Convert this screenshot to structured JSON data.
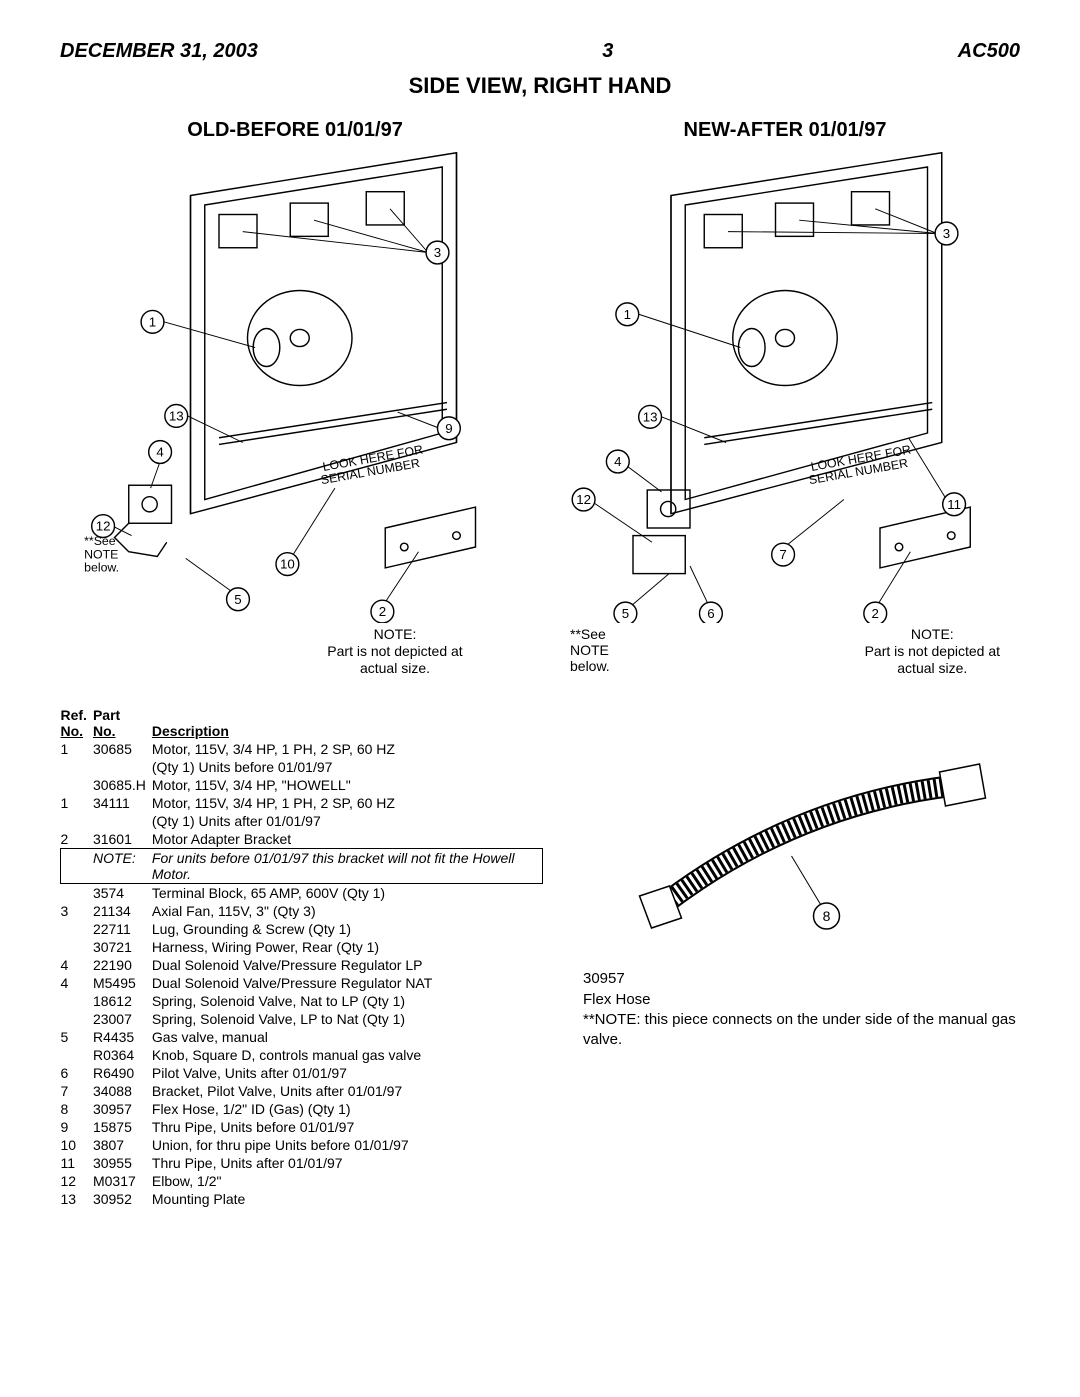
{
  "header": {
    "date": "DECEMBER 31, 2003",
    "page": "3",
    "model": "AC500"
  },
  "main_title": "SIDE VIEW, RIGHT HAND",
  "diagram_old_title": "OLD-BEFORE 01/01/97",
  "diagram_new_title": "NEW-AFTER 01/01/97",
  "look_here": "LOOK HERE FOR\nSERIAL NUMBER",
  "see_note": "**See\nNOTE\nbelow.",
  "size_note": "NOTE:\nPart is not depicted at\nactual size.",
  "hose": {
    "callout_num": "8",
    "part_no": "30957",
    "name": "Flex Hose",
    "note": "**NOTE:  this piece connects on the under side of the manual gas valve."
  },
  "table": {
    "headers": {
      "ref": "Ref.\nNo.",
      "part": "Part\nNo.",
      "desc": "Description"
    },
    "rows": [
      {
        "ref": "1",
        "part": "30685",
        "desc": "Motor, 115V, 3/4 HP, 1 PH, 2 SP, 60 HZ"
      },
      {
        "ref": "",
        "part": "",
        "desc": "(Qty 1)  Units before 01/01/97"
      },
      {
        "ref": "",
        "part": "30685.H",
        "desc": "Motor, 115V, 3/4 HP, \"HOWELL\""
      },
      {
        "ref": "1",
        "part": "34111",
        "desc": "Motor, 115V, 3/4 HP, 1 PH, 2 SP, 60 HZ"
      },
      {
        "ref": "",
        "part": "",
        "desc": "(Qty 1)  Units after 01/01/97"
      },
      {
        "ref": "2",
        "part": "31601",
        "desc": "Motor Adapter Bracket"
      },
      {
        "ref": "",
        "part": "NOTE:",
        "desc": "For units before 01/01/97 this bracket will not fit the Howell Motor.",
        "boxed": true,
        "italic": true
      },
      {
        "ref": "",
        "part": "3574",
        "desc": "Terminal Block, 65 AMP, 600V (Qty 1)"
      },
      {
        "ref": "3",
        "part": "21134",
        "desc": "Axial Fan, 115V, 3\" (Qty 3)"
      },
      {
        "ref": "",
        "part": "22711",
        "desc": "Lug, Grounding & Screw (Qty 1)"
      },
      {
        "ref": "",
        "part": "30721",
        "desc": "Harness, Wiring Power, Rear (Qty 1)"
      },
      {
        "ref": "4",
        "part": "22190",
        "desc": "Dual Solenoid Valve/Pressure Regulator LP"
      },
      {
        "ref": "4",
        "part": "M5495",
        "desc": "Dual Solenoid Valve/Pressure Regulator NAT"
      },
      {
        "ref": "",
        "part": "18612",
        "desc": "Spring, Solenoid Valve, Nat to LP (Qty 1)"
      },
      {
        "ref": "",
        "part": "23007",
        "desc": "Spring, Solenoid Valve, LP to Nat  (Qty 1)"
      },
      {
        "ref": "5",
        "part": "R4435",
        "desc": "Gas valve, manual"
      },
      {
        "ref": "",
        "part": "R0364",
        "desc": "Knob, Square D, controls manual gas valve"
      },
      {
        "ref": "6",
        "part": "R6490",
        "desc": "Pilot Valve, Units after 01/01/97"
      },
      {
        "ref": "7",
        "part": "34088",
        "desc": "Bracket, Pilot Valve, Units after 01/01/97"
      },
      {
        "ref": "8",
        "part": "30957",
        "desc": "Flex Hose, 1/2\" ID (Gas) (Qty 1)"
      },
      {
        "ref": "9",
        "part": "15875",
        "desc": "Thru Pipe, Units before 01/01/97"
      },
      {
        "ref": "10",
        "part": "3807",
        "desc": "Union, for thru pipe  Units before 01/01/97"
      },
      {
        "ref": "11",
        "part": "30955",
        "desc": "Thru Pipe, Units after 01/01/97"
      },
      {
        "ref": "12",
        "part": "M0317",
        "desc": "Elbow, 1/2\""
      },
      {
        "ref": "13",
        "part": "30952",
        "desc": "Mounting Plate"
      }
    ]
  }
}
